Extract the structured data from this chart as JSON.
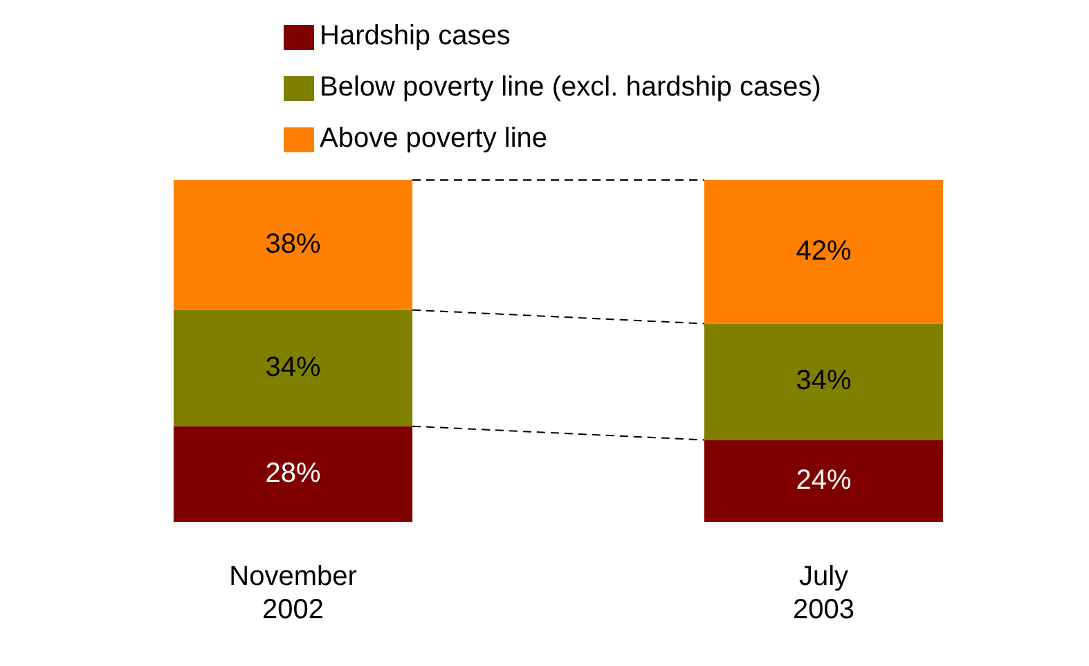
{
  "chart_data": {
    "type": "bar",
    "stacked": true,
    "legend": "top",
    "categories": [
      "November 2002",
      "July 2003"
    ],
    "series": [
      {
        "name": "Hardship cases",
        "color": "#800000",
        "values": [
          28,
          24
        ],
        "value_labels": [
          "28%",
          "24%"
        ]
      },
      {
        "name": "Below poverty line (excl. hardship cases)",
        "color": "#808000",
        "values": [
          34,
          34
        ],
        "value_labels": [
          "34%",
          "34%"
        ]
      },
      {
        "name": "Above poverty line",
        "color": "#ff8000",
        "values": [
          38,
          42
        ],
        "value_labels": [
          "38%",
          "42%"
        ]
      }
    ]
  }
}
